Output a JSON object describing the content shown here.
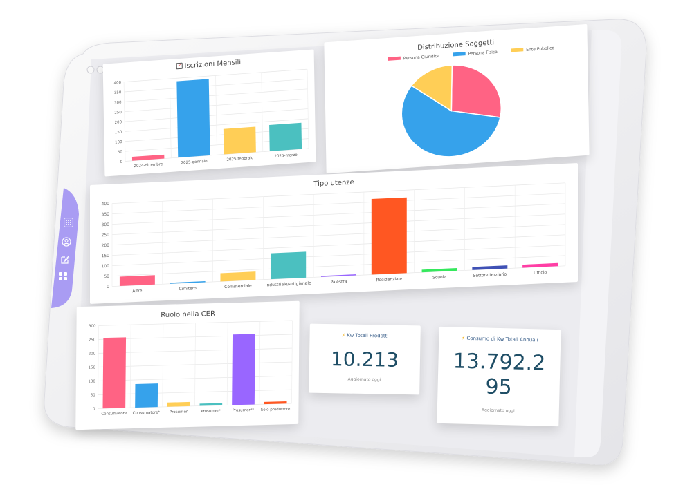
{
  "sidebar": {
    "items": [
      {
        "icon": "grid-dots-icon"
      },
      {
        "icon": "user-circle-icon"
      },
      {
        "icon": "edit-icon"
      },
      {
        "icon": "apps-icon"
      }
    ]
  },
  "charts": {
    "iscrizioni": {
      "title": "Iscrizioni Mensili",
      "title_icon": "checkbox-icon",
      "chart_data": {
        "type": "bar",
        "title": "Iscrizioni Mensili",
        "categories": [
          "2024-dicembre",
          "2025-gennaio",
          "2025-febbraio",
          "2025-marzo"
        ],
        "values": [
          20,
          385,
          128,
          132
        ],
        "colors": [
          "#ff6384",
          "#36a2eb",
          "#ffce56",
          "#4bc0c0"
        ],
        "ylim": [
          0,
          400
        ],
        "yticks": [
          0,
          50,
          100,
          150,
          200,
          250,
          300,
          350,
          400
        ]
      }
    },
    "distribuzione": {
      "title": "Distribuzione Soggetti",
      "chart_data": {
        "type": "pie",
        "title": "Distribuzione Soggetti",
        "labels": [
          "Persona Giuridica",
          "Persona Fisica",
          "Ente Pubblico"
        ],
        "values": [
          28,
          57,
          15
        ],
        "colors": [
          "#ff6384",
          "#36a2eb",
          "#ffce56"
        ],
        "legend": "top"
      }
    },
    "tipo": {
      "title": "Tipo utenze",
      "chart_data": {
        "type": "bar",
        "title": "Tipo utenze",
        "categories": [
          "Altre",
          "Cimitero",
          "Commerciale",
          "Industriale/artigianale",
          "Palestra",
          "Residenziale",
          "Scuola",
          "Settore terziario",
          "Ufficio"
        ],
        "values": [
          45,
          5,
          40,
          125,
          5,
          365,
          13,
          15,
          15
        ],
        "colors": [
          "#ff6384",
          "#36a2eb",
          "#ffce56",
          "#4bc0c0",
          "#9966ff",
          "#ff5722",
          "#35e85d",
          "#3f51b5",
          "#ff3ea5"
        ],
        "ylim": [
          0,
          400
        ],
        "yticks": [
          0,
          50,
          100,
          150,
          200,
          250,
          300,
          350,
          400
        ]
      }
    },
    "ruolo": {
      "title": "Ruolo nella CER",
      "chart_data": {
        "type": "bar",
        "title": "Ruolo nella CER",
        "categories": [
          "Consumatore",
          "Consumatore*",
          "Prosumer",
          "Prosumer*",
          "Prosumer**",
          "Solo produttore"
        ],
        "values": [
          255,
          85,
          15,
          8,
          255,
          8
        ],
        "colors": [
          "#ff6384",
          "#36a2eb",
          "#ffce56",
          "#4bc0c0",
          "#9966ff",
          "#ff5722"
        ],
        "ylim": [
          0,
          300
        ],
        "yticks": [
          0,
          50,
          100,
          150,
          200,
          250,
          300
        ]
      }
    }
  },
  "kpis": {
    "prodotti": {
      "title": "Kw Totali Prodotti",
      "icon": "lightning-icon",
      "value": "10.213",
      "sub": "Aggiornato oggi"
    },
    "consumo": {
      "title": "Consumo di Kw Totali Annuali",
      "icon": "lightning-icon",
      "value_line1": "13.792.2",
      "value_line2": "95",
      "sub": "Aggiornato oggi"
    }
  }
}
